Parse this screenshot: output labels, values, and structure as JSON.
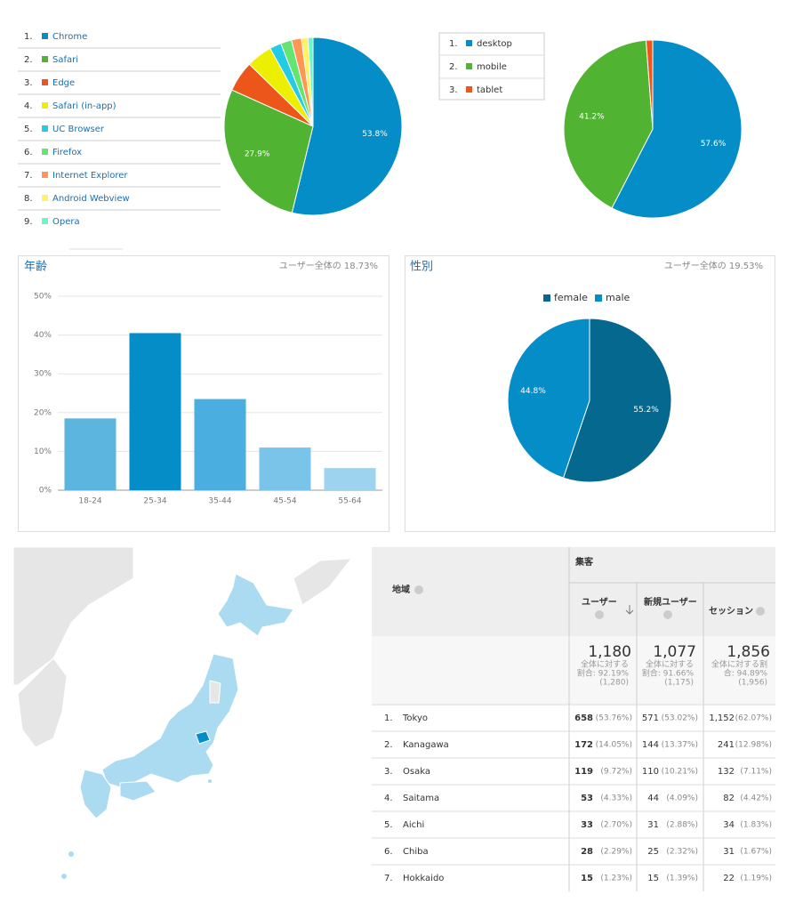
{
  "chart_data": [
    {
      "type": "pie",
      "ranks": [
        "1.",
        "2.",
        "3.",
        "4.",
        "5.",
        "6.",
        "7.",
        "8.",
        "9."
      ],
      "categories": [
        "Chrome",
        "Safari",
        "Edge",
        "Safari (in-app)",
        "UC Browser",
        "Firefox",
        "Internet Explorer",
        "Android Webview",
        "Opera"
      ],
      "values": [
        53.8,
        27.9,
        5.6,
        4.7,
        2.1,
        2.0,
        1.8,
        1.2,
        0.9
      ],
      "value_labels": [
        "53.8%",
        "27.9%",
        null,
        null,
        null,
        null,
        null,
        null,
        null
      ],
      "colors": [
        "#058dc7",
        "#50b432",
        "#ed561b",
        "#edef00",
        "#24cbe5",
        "#64e572",
        "#ff9655",
        "#fff263",
        "#6af9c4"
      ]
    },
    {
      "type": "pie",
      "ranks": [
        "1.",
        "2.",
        "3."
      ],
      "categories": [
        "desktop",
        "mobile",
        "tablet"
      ],
      "values": [
        57.6,
        41.2,
        1.2
      ],
      "value_labels": [
        "57.6%",
        "41.2%",
        null
      ],
      "colors": [
        "#058dc7",
        "#50b432",
        "#ed561b"
      ]
    },
    {
      "type": "bar",
      "title": "年齢",
      "subtitle": "ユーザー全体の 18.73%",
      "categories": [
        "18-24",
        "25-34",
        "35-44",
        "45-54",
        "55-64"
      ],
      "values": [
        18.5,
        40.5,
        23.5,
        11,
        5.7
      ],
      "colors": [
        "#5bb5de",
        "#058dc7",
        "#4aaee0",
        "#7ac4e9",
        "#9dd3ee"
      ],
      "ylim": [
        0,
        50
      ],
      "yticks": [
        {
          "value": 0,
          "label": "0%"
        },
        {
          "value": 10,
          "label": "10%"
        },
        {
          "value": 20,
          "label": "20%"
        },
        {
          "value": 30,
          "label": "30%"
        },
        {
          "value": 40,
          "label": "40%"
        },
        {
          "value": 50,
          "label": "50%"
        }
      ],
      "grid": true
    },
    {
      "type": "pie",
      "title": "性別",
      "subtitle": "ユーザー全体の 19.53%",
      "categories": [
        "female",
        "male"
      ],
      "values": [
        55.2,
        44.8
      ],
      "value_labels": [
        "55.2%",
        "44.8%"
      ],
      "colors": [
        "#05688f",
        "#058dc7"
      ]
    }
  ],
  "table": {
    "header": {
      "region": "地域",
      "group": "集客",
      "columns": [
        "ユーザー",
        "新規ユーザー",
        "セッション"
      ]
    },
    "totals": [
      {
        "value": "1,180",
        "note": [
          "全体に対する",
          "割合: 92.19%",
          "(1,280)"
        ]
      },
      {
        "value": "1,077",
        "note": [
          "全体に対する",
          "割合: 91.66%",
          "(1,175)"
        ]
      },
      {
        "value": "1,856",
        "note": [
          "全体に対する割",
          "合: 94.89%",
          "(1,956)"
        ]
      }
    ],
    "rows": [
      [
        "1.",
        "Tokyo",
        "658",
        "(53.76%)",
        "571",
        "(53.02%)",
        "1,152",
        "(62.07%)"
      ],
      [
        "2.",
        "Kanagawa",
        "172",
        "(14.05%)",
        "144",
        "(13.37%)",
        "241",
        "(12.98%)"
      ],
      [
        "3.",
        "Osaka",
        "119",
        "(9.72%)",
        "110",
        "(10.21%)",
        "132",
        "(7.11%)"
      ],
      [
        "4.",
        "Saitama",
        "53",
        "(4.33%)",
        "44",
        "(4.09%)",
        "82",
        "(4.42%)"
      ],
      [
        "5.",
        "Aichi",
        "33",
        "(2.70%)",
        "31",
        "(2.88%)",
        "34",
        "(1.83%)"
      ],
      [
        "6.",
        "Chiba",
        "28",
        "(2.29%)",
        "25",
        "(2.32%)",
        "31",
        "(1.67%)"
      ],
      [
        "7.",
        "Hokkaido",
        "15",
        "(1.23%)",
        "15",
        "(1.39%)",
        "22",
        "(1.19%)"
      ]
    ]
  }
}
